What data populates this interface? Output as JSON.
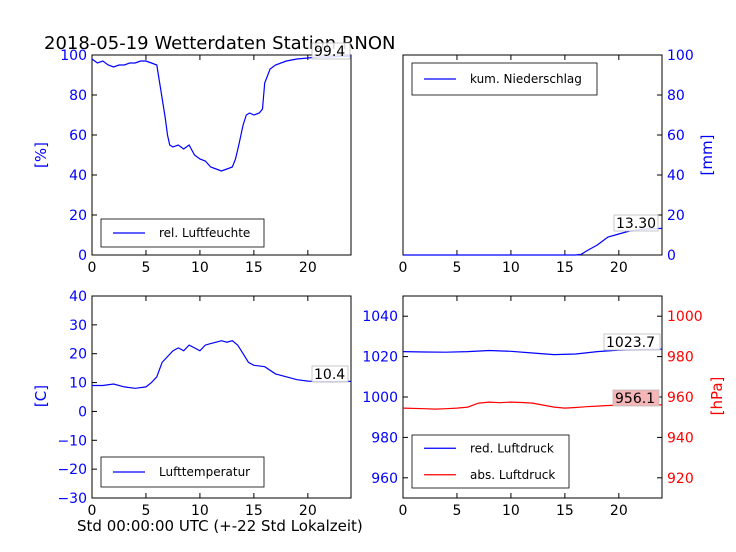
{
  "title": "2018-05-19 Wetterdaten Station RNON",
  "xlabel": "Std 00:00:00 UTC (+-22 Std Lokalzeit)",
  "colors": {
    "blue": "#0000ff",
    "red": "#ff0000",
    "red_box": "#f4b6b6"
  },
  "chart_data": [
    {
      "id": "humidity",
      "type": "line",
      "ylabel": "[%]",
      "xlim": [
        0,
        24
      ],
      "ylim": [
        0,
        100
      ],
      "xticks": [
        "0",
        "5",
        "10",
        "15",
        "20"
      ],
      "yticks": [
        "0",
        "20",
        "40",
        "60",
        "80",
        "100"
      ],
      "legend": [
        "rel. Luftfeuchte"
      ],
      "legend_position": "lower-center",
      "last_value": "99.4",
      "series": [
        {
          "name": "rel. Luftfeuchte",
          "x": [
            0,
            0.5,
            1,
            1.5,
            2,
            2.5,
            3,
            3.5,
            4,
            4.5,
            5,
            5.5,
            6,
            6.3,
            6.6,
            6.8,
            7,
            7.2,
            7.5,
            8,
            8.5,
            9,
            9.5,
            10,
            10.5,
            11,
            11.5,
            12,
            12.5,
            13,
            13.3,
            13.6,
            14,
            14.3,
            14.6,
            15,
            15.5,
            15.8,
            16,
            16.5,
            17,
            18,
            19,
            20,
            21,
            22,
            23,
            24
          ],
          "y": [
            98,
            96,
            97,
            95,
            94,
            95,
            95,
            96,
            96,
            97,
            97,
            96,
            95,
            85,
            75,
            68,
            60,
            55,
            54,
            55,
            53,
            55,
            50,
            48,
            47,
            44,
            43,
            42,
            43,
            44,
            48,
            55,
            65,
            70,
            71,
            70,
            71,
            73,
            86,
            93,
            95,
            97,
            98,
            98.5,
            99,
            99,
            99.3,
            99.4
          ]
        }
      ]
    },
    {
      "id": "precipitation",
      "type": "line",
      "ylabel": "[mm]",
      "xlim": [
        0,
        24
      ],
      "ylim": [
        0,
        100
      ],
      "xticks": [
        "0",
        "5",
        "10",
        "15",
        "20"
      ],
      "yticks": [
        "0",
        "20",
        "40",
        "60",
        "80",
        "100"
      ],
      "legend": [
        "kum. Niederschlag"
      ],
      "legend_position": "upper-left",
      "last_value": "13.30",
      "series": [
        {
          "name": "kum. Niederschlag",
          "x": [
            0,
            5,
            10,
            15,
            16,
            16.5,
            17,
            17.5,
            18,
            18.5,
            19,
            20,
            21,
            22,
            23,
            24
          ],
          "y": [
            0,
            0,
            0,
            0,
            0,
            0.3,
            2,
            3.5,
            5,
            7,
            9,
            10.5,
            12,
            12.8,
            13.1,
            13.3
          ]
        }
      ]
    },
    {
      "id": "temperature",
      "type": "line",
      "ylabel": "[C]",
      "xlim": [
        0,
        24
      ],
      "ylim": [
        -30,
        40
      ],
      "xticks": [
        "0",
        "5",
        "10",
        "15",
        "20"
      ],
      "yticks": [
        "−30",
        "−20",
        "−10",
        "0",
        "10",
        "20",
        "30",
        "40"
      ],
      "legend": [
        "Lufttemperatur"
      ],
      "legend_position": "lower-center",
      "last_value": "10.4",
      "series": [
        {
          "name": "Lufttemperatur",
          "x": [
            0,
            1,
            2,
            3,
            4,
            5,
            5.5,
            6,
            6.5,
            7,
            7.5,
            8,
            8.5,
            9,
            9.5,
            10,
            10.5,
            11,
            11.5,
            12,
            12.5,
            13,
            13.5,
            14,
            14.5,
            15,
            16,
            17,
            18,
            19,
            20,
            21,
            22,
            23,
            24
          ],
          "y": [
            9,
            9,
            9.5,
            8.5,
            8,
            8.5,
            10,
            12,
            17,
            19,
            21,
            22,
            21,
            23,
            22,
            21,
            23,
            23.5,
            24,
            24.5,
            24,
            24.5,
            23,
            20,
            17,
            16,
            15.5,
            13,
            12,
            11,
            10.5,
            10.4,
            10.3,
            10.4,
            10.4
          ]
        }
      ]
    },
    {
      "id": "pressure",
      "type": "line",
      "ylabel_left": "",
      "ylabel_right": "[hPa]",
      "xlim": [
        0,
        24
      ],
      "ylim_left": [
        950,
        1050
      ],
      "ylim_right": [
        910,
        1010
      ],
      "xticks": [
        "0",
        "5",
        "10",
        "15",
        "20"
      ],
      "yticks_left": [
        "960",
        "980",
        "1000",
        "1020",
        "1040"
      ],
      "yticks_right": [
        "920",
        "940",
        "960",
        "980",
        "1000"
      ],
      "legend": [
        "red. Luftdruck",
        "abs. Luftdruck"
      ],
      "legend_position": "lower-left",
      "last_value_red": "1023.7",
      "last_value_abs": "956.1",
      "series": [
        {
          "name": "red. Luftdruck",
          "axis": "left",
          "x": [
            0,
            2,
            4,
            6,
            8,
            10,
            12,
            14,
            16,
            18,
            20,
            22,
            24
          ],
          "y": [
            1022.5,
            1022.3,
            1022.2,
            1022.5,
            1023.0,
            1022.6,
            1021.8,
            1021.0,
            1021.3,
            1022.5,
            1023.2,
            1023.5,
            1023.7
          ]
        },
        {
          "name": "abs. Luftdruck",
          "axis": "right",
          "x": [
            0,
            2,
            3,
            4,
            5,
            6,
            7,
            8,
            9,
            10,
            11,
            12,
            13,
            14,
            15,
            16,
            17,
            18,
            19,
            20,
            21,
            22,
            23,
            24
          ],
          "y": [
            954.5,
            954.2,
            954.0,
            954.2,
            954.5,
            955.0,
            957.0,
            957.5,
            957.2,
            957.5,
            957.3,
            957.0,
            956.0,
            955.0,
            954.5,
            954.8,
            955.2,
            955.5,
            955.8,
            956.0,
            956.0,
            956.1,
            956.1,
            956.1
          ]
        }
      ]
    }
  ]
}
